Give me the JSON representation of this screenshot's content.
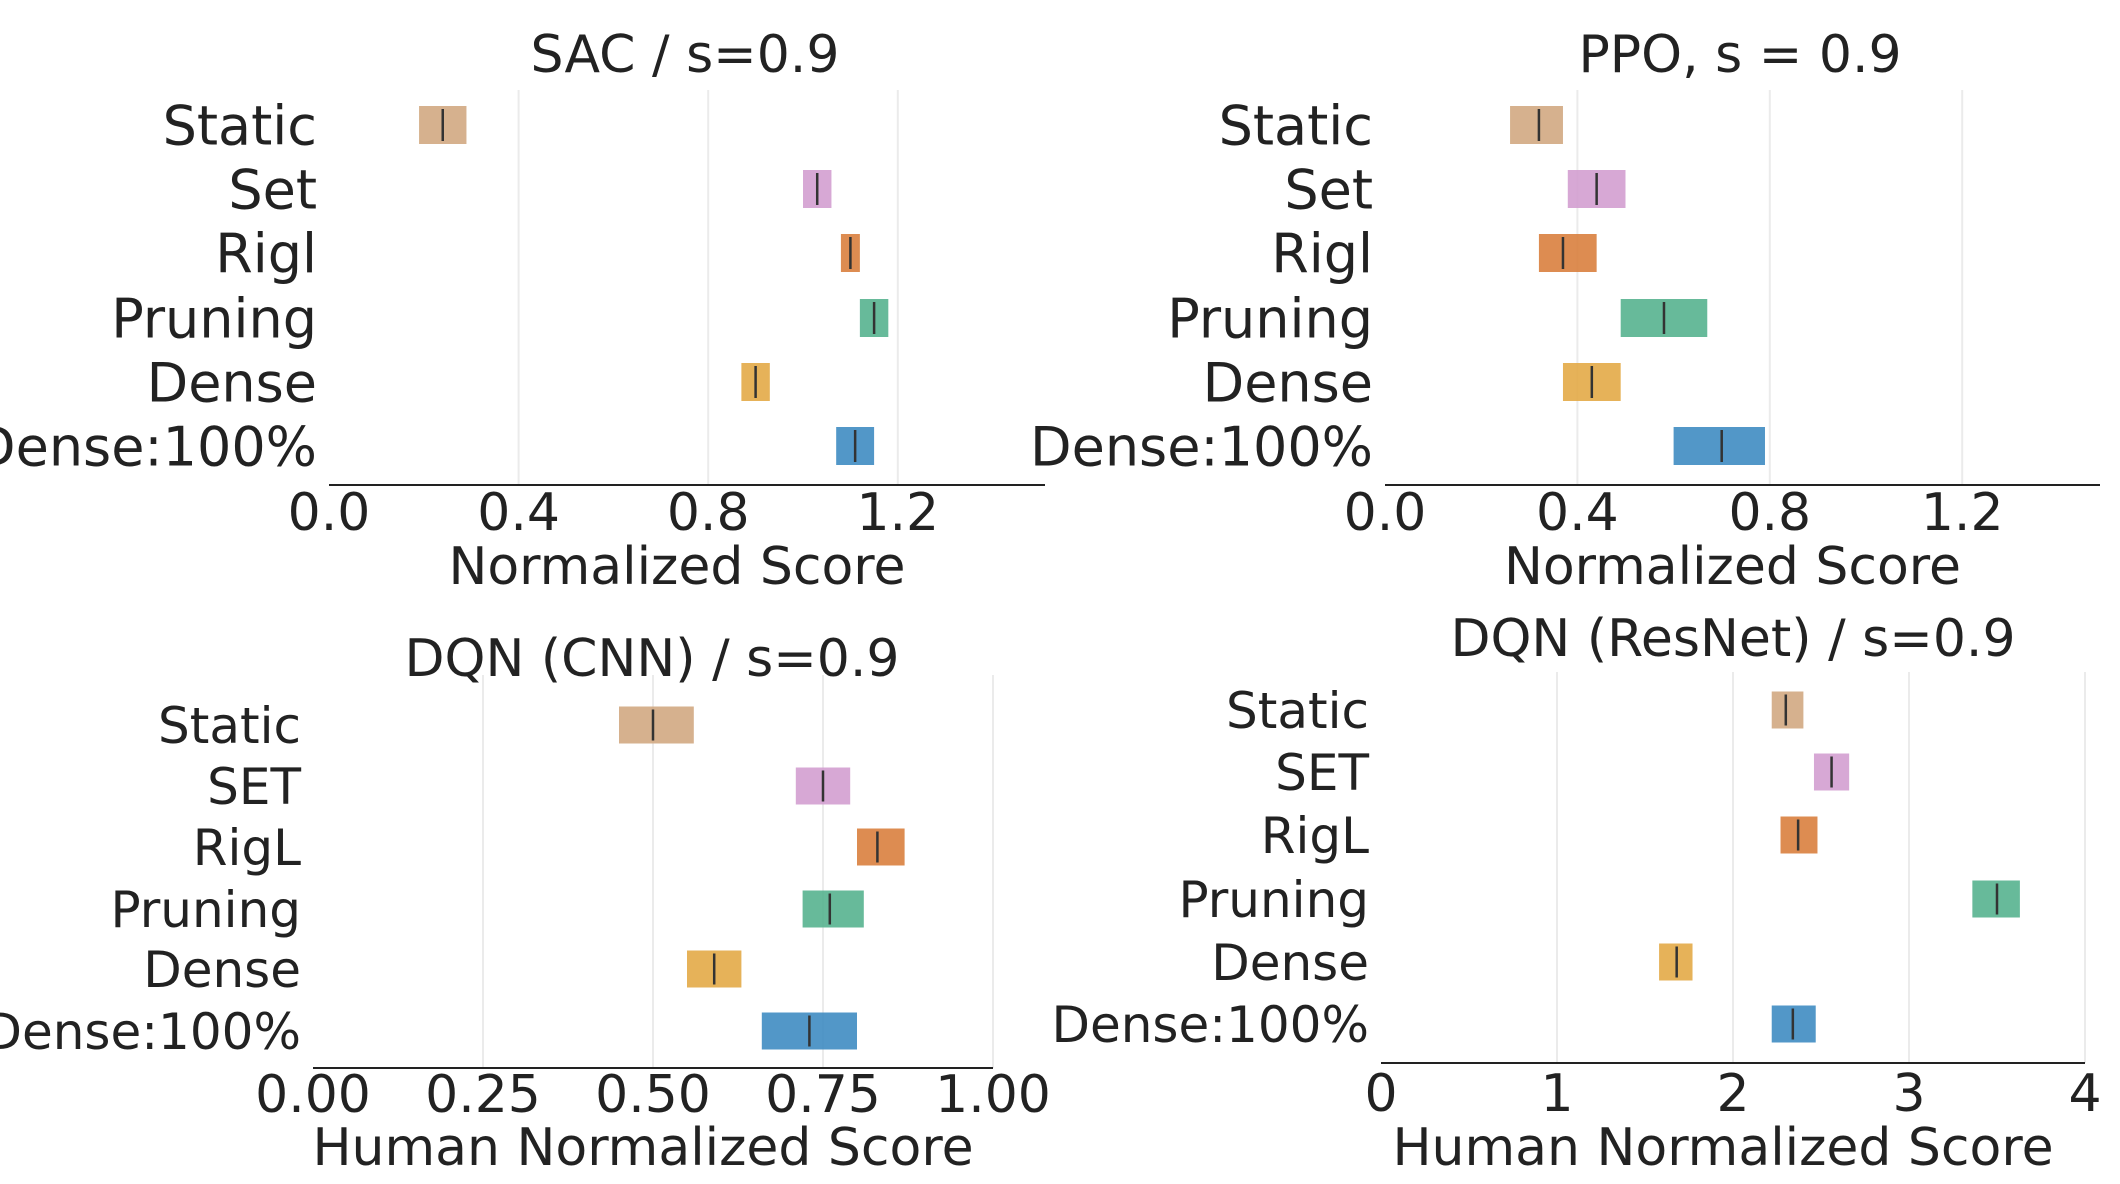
{
  "chart_data": [
    {
      "type": "interval",
      "title": "SAC / s=0.9",
      "xlabel": "Normalized Score",
      "xlim": [
        0.0,
        1.5
      ],
      "xticks": [
        "0.0",
        "0.4",
        "0.8",
        "1.2"
      ],
      "xtick_values": [
        0.0,
        0.4,
        0.8,
        1.2
      ],
      "grid": true,
      "categories": [
        "Static",
        "Set",
        "Rigl",
        "Pruning",
        "Dense",
        "Dense:100%"
      ],
      "series": [
        {
          "low": 0.19,
          "high": 0.29,
          "median": 0.24
        },
        {
          "low": 1.0,
          "high": 1.06,
          "median": 1.03
        },
        {
          "low": 1.08,
          "high": 1.12,
          "median": 1.1
        },
        {
          "low": 1.12,
          "high": 1.18,
          "median": 1.15
        },
        {
          "low": 0.87,
          "high": 0.93,
          "median": 0.9
        },
        {
          "low": 1.07,
          "high": 1.15,
          "median": 1.11
        }
      ]
    },
    {
      "type": "interval",
      "title": "PPO, s = 0.9",
      "xlabel": "Normalized Score",
      "xlim": [
        0.0,
        1.5
      ],
      "xticks": [
        "0.0",
        "0.4",
        "0.8",
        "1.2"
      ],
      "xtick_values": [
        0.0,
        0.4,
        0.8,
        1.2
      ],
      "grid": true,
      "categories": [
        "Static",
        "Set",
        "Rigl",
        "Pruning",
        "Dense",
        "Dense:100%"
      ],
      "series": [
        {
          "low": 0.26,
          "high": 0.37,
          "median": 0.32
        },
        {
          "low": 0.38,
          "high": 0.5,
          "median": 0.44
        },
        {
          "low": 0.32,
          "high": 0.44,
          "median": 0.37
        },
        {
          "low": 0.49,
          "high": 0.67,
          "median": 0.58
        },
        {
          "low": 0.37,
          "high": 0.49,
          "median": 0.43
        },
        {
          "low": 0.6,
          "high": 0.79,
          "median": 0.7
        }
      ]
    },
    {
      "type": "interval",
      "title": "DQN (CNN) / s=0.9",
      "xlabel": "Human Normalized Score",
      "xlim": [
        0.0,
        1.0
      ],
      "xticks": [
        "0.00",
        "0.25",
        "0.50",
        "0.75",
        "1.00"
      ],
      "xtick_values": [
        0.0,
        0.25,
        0.5,
        0.75,
        1.0
      ],
      "grid": true,
      "categories": [
        "Static",
        "SET",
        "RigL",
        "Pruning",
        "Dense",
        "Dense:100%"
      ],
      "series": [
        {
          "low": 0.45,
          "high": 0.56,
          "median": 0.5
        },
        {
          "low": 0.71,
          "high": 0.79,
          "median": 0.75
        },
        {
          "low": 0.8,
          "high": 0.87,
          "median": 0.83
        },
        {
          "low": 0.72,
          "high": 0.81,
          "median": 0.76
        },
        {
          "low": 0.55,
          "high": 0.63,
          "median": 0.59
        },
        {
          "low": 0.66,
          "high": 0.8,
          "median": 0.73
        }
      ]
    },
    {
      "type": "interval",
      "title": "DQN (ResNet) / s=0.9",
      "xlabel": "Human Normalized Score",
      "xlim": [
        0.0,
        4.0
      ],
      "xticks": [
        "0",
        "1",
        "2",
        "3",
        "4"
      ],
      "xtick_values": [
        0,
        1,
        2,
        3,
        4
      ],
      "grid": true,
      "categories": [
        "Static",
        "SET",
        "RigL",
        "Pruning",
        "Dense",
        "Dense:100%"
      ],
      "series": [
        {
          "low": 2.22,
          "high": 2.4,
          "median": 2.3
        },
        {
          "low": 2.46,
          "high": 2.66,
          "median": 2.56
        },
        {
          "low": 2.27,
          "high": 2.48,
          "median": 2.37
        },
        {
          "low": 3.36,
          "high": 3.63,
          "median": 3.5
        },
        {
          "low": 1.58,
          "high": 1.77,
          "median": 1.68
        },
        {
          "low": 2.22,
          "high": 2.47,
          "median": 2.34
        }
      ]
    }
  ],
  "colors": [
    "#d2a882",
    "#d39ed0",
    "#d9803e",
    "#56b28f",
    "#e3aa47",
    "#3f8cc2"
  ]
}
